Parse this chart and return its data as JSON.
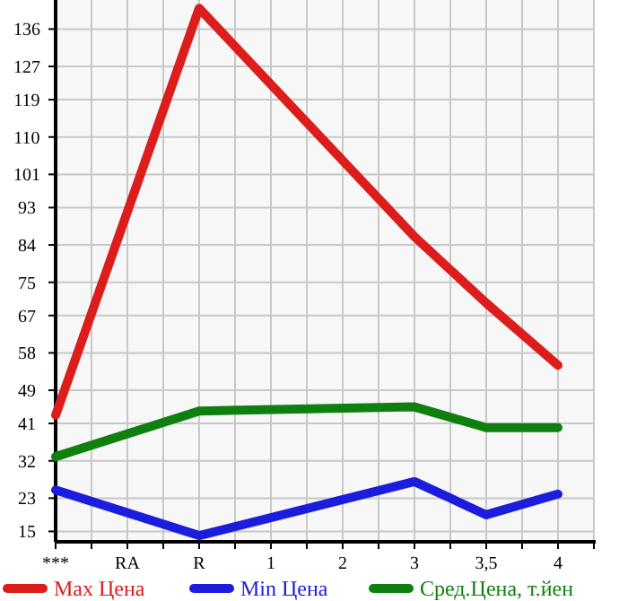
{
  "chart_data": {
    "type": "line",
    "categories": [
      "***",
      "RA",
      "R",
      "1",
      "2",
      "3",
      "3,5",
      "4"
    ],
    "series": [
      {
        "name": "Max Цена",
        "color": "#dd1c1c",
        "values": [
          43,
          null,
          141,
          null,
          null,
          86,
          70,
          55
        ]
      },
      {
        "name": "Min Цена",
        "color": "#1c1cdd",
        "values": [
          25,
          null,
          14,
          null,
          null,
          27,
          19,
          24
        ]
      },
      {
        "name": "Сред.Цена, т.йен",
        "color": "#0f800f",
        "values": [
          33,
          null,
          44,
          null,
          null,
          45,
          40,
          40
        ]
      }
    ],
    "ylim": [
      12.5,
      143
    ],
    "yticks": [
      15,
      23,
      32,
      41,
      49,
      58,
      67,
      75,
      84,
      93,
      101,
      110,
      119,
      127,
      136
    ],
    "grid": true,
    "legend": "bottom",
    "marker": "none",
    "line_style": "solid"
  }
}
